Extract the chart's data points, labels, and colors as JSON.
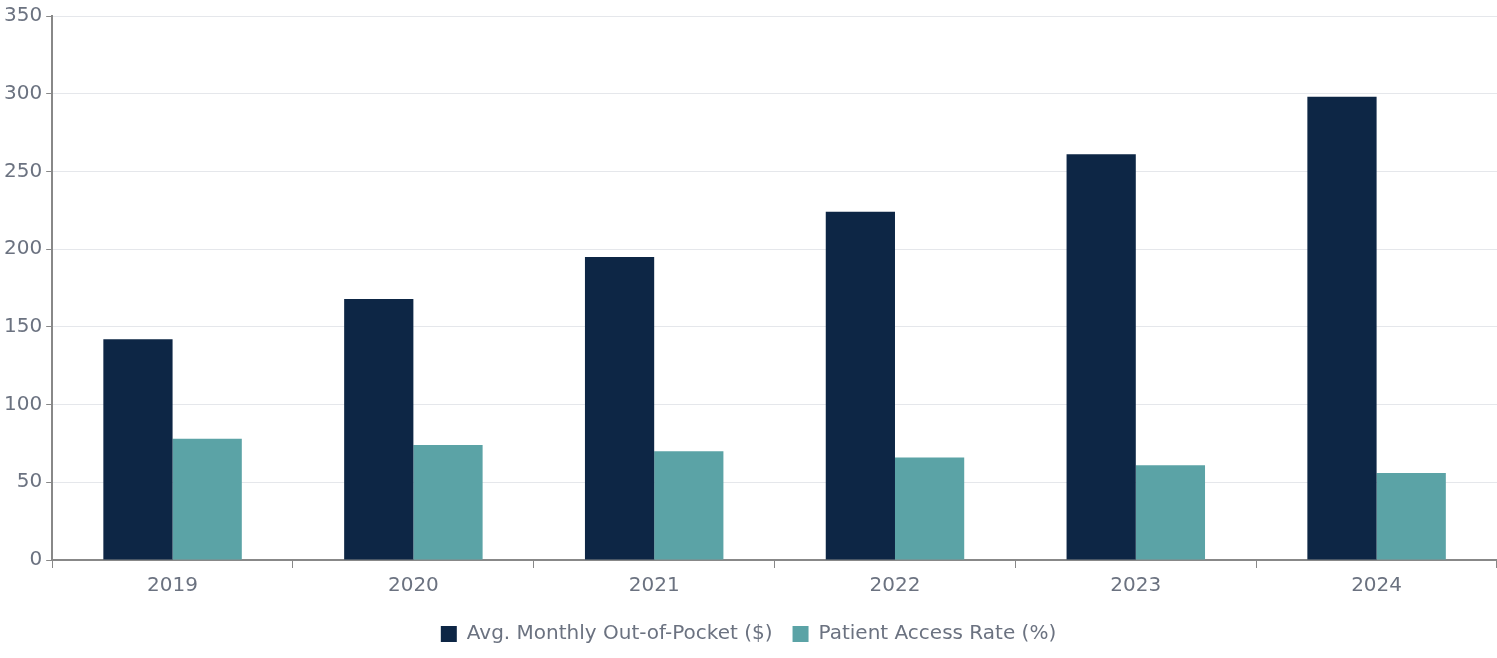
{
  "chart_data": {
    "type": "bar",
    "categories": [
      "2019",
      "2020",
      "2021",
      "2022",
      "2023",
      "2024"
    ],
    "series": [
      {
        "name": "Avg. Monthly Out-of-Pocket ($)",
        "color": "#0d2645",
        "values": [
          142,
          168,
          195,
          224,
          261,
          298
        ]
      },
      {
        "name": "Patient Access Rate (%)",
        "color": "#5ba3a6",
        "values": [
          78,
          74,
          70,
          66,
          61,
          56
        ]
      }
    ],
    "ylim": [
      0,
      350
    ],
    "yticks": [
      0,
      50,
      100,
      150,
      200,
      250,
      300,
      350
    ],
    "grid": "y",
    "legend": "bottom"
  }
}
